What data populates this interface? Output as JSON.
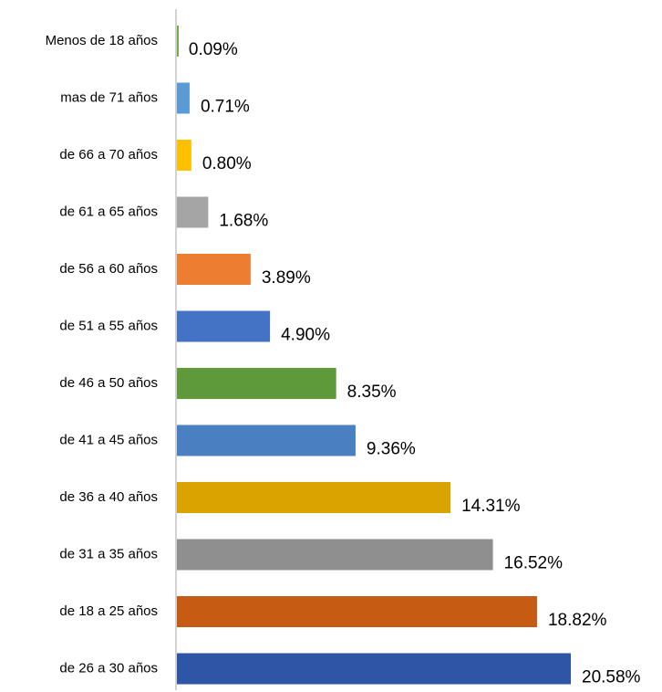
{
  "chart_data": {
    "type": "bar",
    "orientation": "horizontal",
    "categories": [
      "Menos de 18 años",
      "mas de 71 años",
      "de 66 a 70 años",
      "de 61 a 65 años",
      "de 56 a 60 años",
      "de 51 a 55 años",
      "de 46 a 50 años",
      "de 41 a 45 años",
      "de 36 a 40 años",
      "de 31 a 35 años",
      "de 18 a 25 años",
      "de 26 a 30 años"
    ],
    "values": [
      0.09,
      0.71,
      0.8,
      1.68,
      3.89,
      4.9,
      8.35,
      9.36,
      14.31,
      16.52,
      18.82,
      20.58
    ],
    "value_labels": [
      "0.09%",
      "0.71%",
      "0.80%",
      "1.68%",
      "3.89%",
      "4.90%",
      "8.35%",
      "9.36%",
      "14.31%",
      "16.52%",
      "18.82%",
      "20.58%"
    ],
    "colors": [
      "#70ad47",
      "#5b9bd5",
      "#ffc000",
      "#a5a5a5",
      "#ed7d31",
      "#4472c4",
      "#5e9a3a",
      "#4a80c2",
      "#dba300",
      "#8f8f8f",
      "#c65b14",
      "#2f56a6"
    ]
  }
}
